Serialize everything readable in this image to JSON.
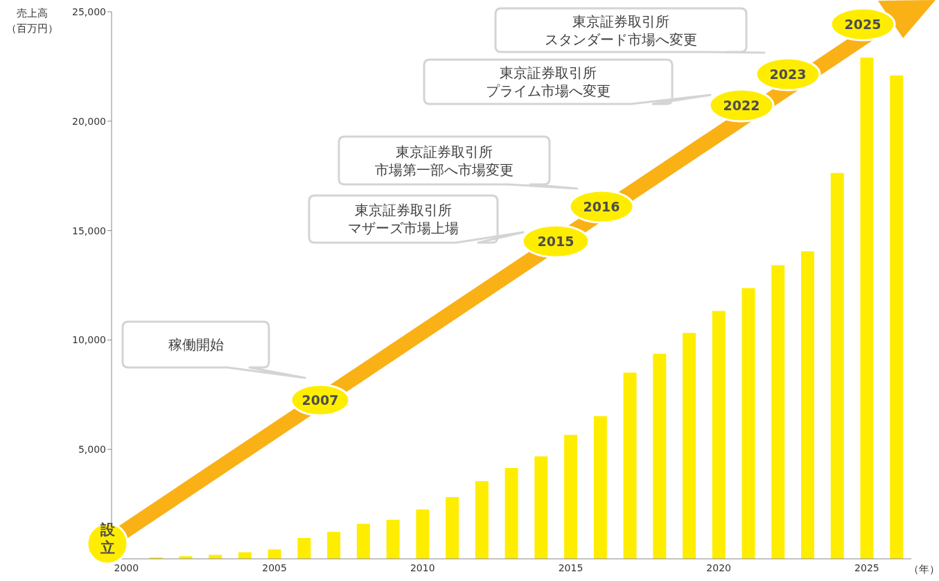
{
  "chart_data": {
    "type": "bar",
    "ylabel": "売上高（百万円）",
    "xlabel": "（年）",
    "categories": [
      "2000",
      null,
      null,
      null,
      null,
      "2005",
      null,
      null,
      null,
      null,
      "2010",
      null,
      null,
      null,
      null,
      "2015",
      null,
      null,
      null,
      null,
      "2020",
      null,
      null,
      null,
      null,
      "2025",
      null
    ],
    "values": [
      null,
      60,
      120,
      180,
      300,
      430,
      950,
      1230,
      1600,
      1780,
      2260,
      2820,
      3550,
      4150,
      4680,
      5660,
      6520,
      8510,
      9370,
      10320,
      11330,
      12370,
      13420,
      14050,
      17630,
      22910,
      22090
    ],
    "color": "#ffed00",
    "ylim": [
      0,
      25000
    ],
    "yticks": [
      {
        "value": 5000,
        "label": "5,000"
      },
      {
        "value": 10000,
        "label": "10,000"
      },
      {
        "value": 15000,
        "label": "15,000"
      },
      {
        "value": 20000,
        "label": "20,000"
      },
      {
        "value": 25000,
        "label": "25,000"
      }
    ],
    "grid": false,
    "legend": false,
    "annotations": [
      "設立",
      "2007",
      "稼働開始",
      "2015",
      "東京証券取引所",
      "マザーズ市場上場",
      "2016",
      "東京証券取引所",
      "市場第一部へ市場変更",
      "2022",
      "東京証券取引所",
      "プライム市場へ変更",
      "2023",
      "東京証券取引所",
      "スタンダード市場へ変更",
      "2025"
    ]
  }
}
